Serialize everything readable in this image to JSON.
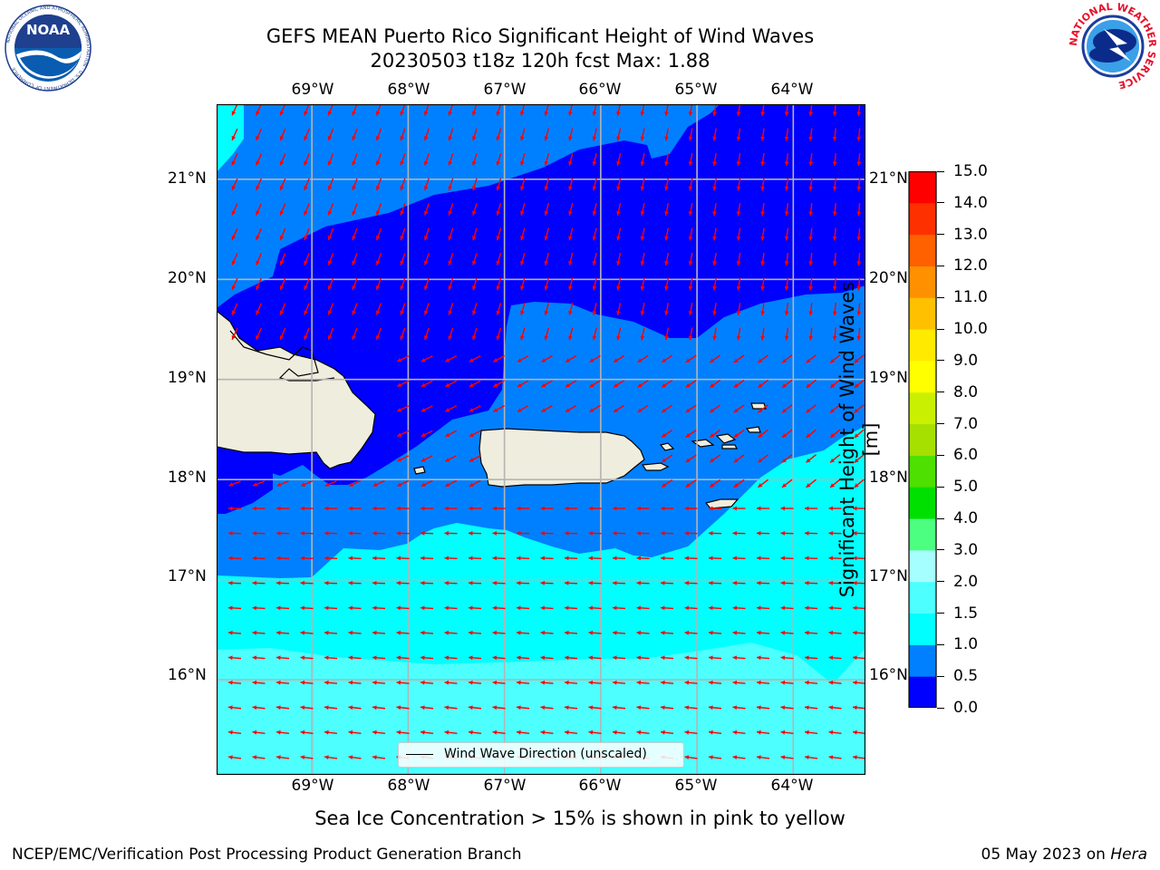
{
  "title": {
    "line1": "GEFS MEAN Puerto Rico Significant Height of Wind Waves",
    "line2": "20230503 t18z 120h fcst   Max: 1.88"
  },
  "logos": {
    "left": {
      "icon": "noaa-logo-icon",
      "text": "NOAA",
      "ring_text": "NATIONAL OCEANIC AND ATMOSPHERIC ADMINISTRATION · U.S. DEPARTMENT OF COMMERCE"
    },
    "right": {
      "icon": "nws-logo-icon",
      "ring_text": "NATIONAL WEATHER SERVICE"
    }
  },
  "map": {
    "lon_ticks": [
      "69°W",
      "68°W",
      "67°W",
      "66°W",
      "65°W",
      "64°W"
    ],
    "lat_ticks": [
      "21°N",
      "20°N",
      "19°N",
      "18°N",
      "17°N",
      "16°N"
    ],
    "lon_values": [
      -69,
      -68,
      -67,
      -66,
      -65,
      -64
    ],
    "lat_values": [
      21,
      20,
      19,
      18,
      17,
      16
    ],
    "lon_range": [
      -69.99,
      -63.25
    ],
    "lat_range": [
      15.05,
      21.75
    ],
    "gridlines": true,
    "land_color": "#efedde",
    "coast_color": "#000000",
    "arrow_color": "#ff0000",
    "legend": {
      "label": "Wind Wave Direction (unscaled)",
      "placement": "bottom-center"
    }
  },
  "colorbar": {
    "title": "Significant Height of Wind Waves [m]",
    "placement": "right",
    "levels": [
      "0.0",
      "0.5",
      "1.0",
      "1.5",
      "2.0",
      "3.0",
      "4.0",
      "5.0",
      "6.0",
      "7.0",
      "8.0",
      "9.0",
      "10.0",
      "11.0",
      "12.0",
      "13.0",
      "14.0",
      "15.0"
    ],
    "colors": [
      "#0000ff",
      "#0080ff",
      "#00ffff",
      "#4dffff",
      "#a6ffff",
      "#4dff80",
      "#00e000",
      "#4de000",
      "#a6e000",
      "#c8f000",
      "#ffff00",
      "#ffea00",
      "#ffc000",
      "#ff9000",
      "#ff6000",
      "#ff3000",
      "#ff0000"
    ]
  },
  "caption": "Sea Ice Concentration > 15% is shown in pink to yellow",
  "footer": {
    "left": "NCEP/EMC/Verification Post Processing Product Generation Branch",
    "right_date": "05 May 2023 on",
    "right_system": "Hera"
  }
}
